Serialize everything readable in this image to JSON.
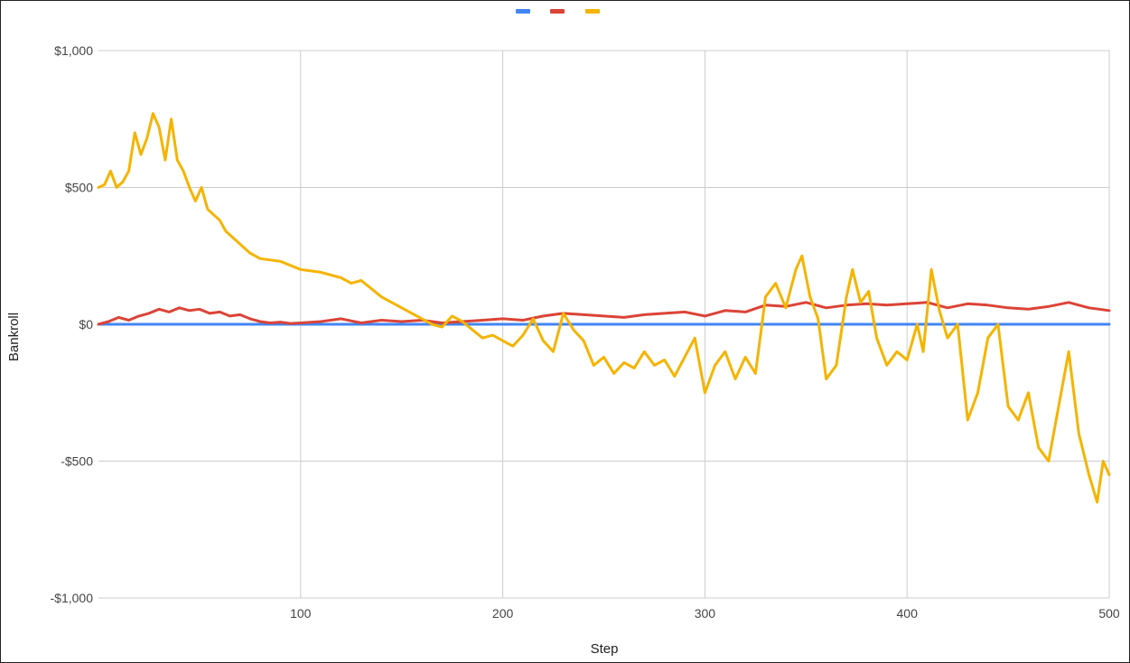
{
  "chart_data": {
    "type": "line",
    "title": "",
    "xlabel": "Step",
    "ylabel": "Bankroll",
    "xlim": [
      0,
      500
    ],
    "ylim": [
      -1000,
      1000
    ],
    "x_ticks": [
      100,
      200,
      300,
      400,
      500
    ],
    "x_tick_labels": [
      "100",
      "200",
      "300",
      "400",
      "500"
    ],
    "y_ticks": [
      1000,
      500,
      0,
      -500,
      -1000
    ],
    "y_tick_labels": [
      "$1,000",
      "$500",
      "$0",
      "-$500",
      "-$1,000"
    ],
    "grid": true,
    "legend_placement": "top-center",
    "series": [
      {
        "color": "#4285f4",
        "x": [
          0,
          100,
          200,
          300,
          400,
          500
        ],
        "y": [
          0,
          0,
          0,
          0,
          0,
          0
        ]
      },
      {
        "color": "#db4437",
        "x": [
          0,
          5,
          10,
          15,
          20,
          25,
          30,
          35,
          40,
          45,
          50,
          55,
          60,
          65,
          70,
          75,
          80,
          85,
          90,
          95,
          100,
          110,
          120,
          130,
          140,
          150,
          160,
          170,
          180,
          190,
          200,
          210,
          220,
          230,
          240,
          250,
          260,
          270,
          280,
          290,
          300,
          310,
          320,
          330,
          340,
          350,
          360,
          370,
          380,
          390,
          400,
          410,
          420,
          430,
          440,
          450,
          460,
          470,
          480,
          490,
          500
        ],
        "y": [
          0,
          10,
          25,
          15,
          30,
          40,
          55,
          45,
          60,
          50,
          55,
          40,
          45,
          30,
          35,
          20,
          10,
          5,
          8,
          3,
          5,
          10,
          20,
          5,
          15,
          10,
          15,
          5,
          10,
          15,
          20,
          15,
          30,
          40,
          35,
          30,
          25,
          35,
          40,
          45,
          30,
          50,
          45,
          70,
          65,
          80,
          60,
          70,
          75,
          70,
          75,
          80,
          60,
          75,
          70,
          60,
          55,
          65,
          80,
          60,
          50
        ]
      },
      {
        "color": "#f4b400",
        "x": [
          0,
          3,
          6,
          9,
          12,
          15,
          18,
          21,
          24,
          27,
          30,
          33,
          36,
          39,
          42,
          45,
          48,
          51,
          54,
          57,
          60,
          63,
          66,
          69,
          72,
          75,
          80,
          90,
          100,
          110,
          115,
          120,
          125,
          130,
          135,
          140,
          150,
          160,
          165,
          170,
          175,
          180,
          185,
          190,
          195,
          200,
          205,
          210,
          215,
          220,
          225,
          230,
          235,
          240,
          245,
          250,
          255,
          260,
          265,
          270,
          275,
          280,
          285,
          290,
          295,
          300,
          305,
          310,
          315,
          320,
          325,
          330,
          335,
          340,
          345,
          348,
          352,
          356,
          360,
          365,
          370,
          373,
          377,
          381,
          385,
          390,
          395,
          400,
          405,
          408,
          412,
          416,
          420,
          425,
          430,
          435,
          440,
          445,
          450,
          455,
          460,
          465,
          470,
          475,
          480,
          485,
          490,
          494,
          497,
          500
        ],
        "y": [
          500,
          510,
          560,
          500,
          520,
          560,
          700,
          620,
          680,
          770,
          720,
          600,
          750,
          600,
          560,
          500,
          450,
          500,
          420,
          400,
          380,
          340,
          320,
          300,
          280,
          260,
          240,
          230,
          200,
          190,
          180,
          170,
          150,
          160,
          130,
          100,
          60,
          20,
          0,
          -10,
          30,
          10,
          -20,
          -50,
          -40,
          -60,
          -80,
          -40,
          20,
          -60,
          -100,
          40,
          -20,
          -60,
          -150,
          -120,
          -180,
          -140,
          -160,
          -100,
          -150,
          -130,
          -190,
          -120,
          -50,
          -250,
          -150,
          -100,
          -200,
          -120,
          -180,
          100,
          150,
          60,
          200,
          250,
          100,
          20,
          -200,
          -150,
          100,
          200,
          80,
          120,
          -50,
          -150,
          -100,
          -130,
          0,
          -100,
          200,
          50,
          -50,
          0,
          -350,
          -250,
          -50,
          0,
          -300,
          -350,
          -250,
          -450,
          -500,
          -300,
          -100,
          -400,
          -550,
          -650,
          -500,
          -550
        ]
      }
    ]
  }
}
